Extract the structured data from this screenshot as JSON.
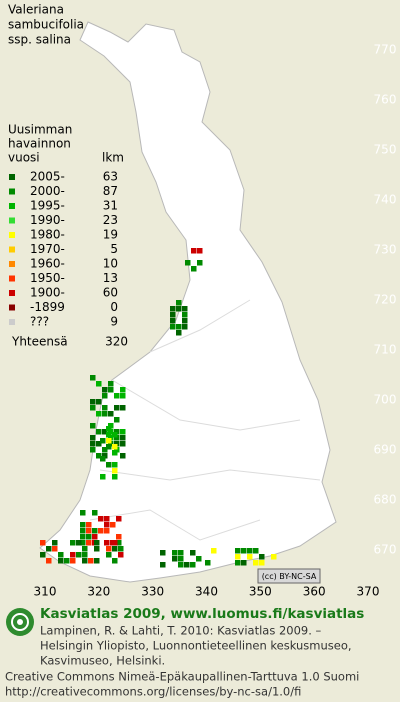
{
  "title": [
    "Valeriana",
    "sambucifolia",
    "ssp. salina"
  ],
  "legend": {
    "heading": [
      "Uusimman",
      "havainnon"
    ],
    "col_year": "vuosi",
    "col_count": "lkm",
    "rows": [
      {
        "label": "2005-",
        "count": 63,
        "color": "#006400"
      },
      {
        "label": "2000-",
        "count": 87,
        "color": "#008a00"
      },
      {
        "label": "1995-",
        "count": 31,
        "color": "#00b400"
      },
      {
        "label": "1990-",
        "count": 23,
        "color": "#33dd33"
      },
      {
        "label": "1980-",
        "count": 19,
        "color": "#ffff00"
      },
      {
        "label": "1970-",
        "count": 5,
        "color": "#ffcc00"
      },
      {
        "label": "1960-",
        "count": 10,
        "color": "#ff8800"
      },
      {
        "label": "1950-",
        "count": 13,
        "color": "#ff3300"
      },
      {
        "label": "1900-",
        "count": 60,
        "color": "#cc0000"
      },
      {
        "label": "-1899",
        "count": 0,
        "color": "#880000"
      },
      {
        "label": "???",
        "count": 9,
        "color": "#cccccc"
      }
    ],
    "total_label": "Yhteensä",
    "total": 320
  },
  "grid": {
    "yticks": [
      770,
      760,
      750,
      740,
      730,
      720,
      710,
      700,
      690,
      680,
      670
    ],
    "xticks": [
      310,
      320,
      330,
      340,
      350,
      360,
      370
    ]
  },
  "license_badge": "(cc) BY-NC-SA",
  "footer": {
    "site": "Kasviatlas 2009, www.luomus.fi/kasviatlas",
    "citation": [
      "Lampinen, R. & Lahti, T. 2010: Kasviatlas 2009. –",
      "Helsingin Yliopisto, Luonnontieteellinen keskusmuseo,",
      "Kasvimuseo, Helsinki."
    ],
    "license": [
      "Creative Commons Nimeä-Epäkaupallinen-Tarttuva 1.0 Suomi",
      "http://creativecommons.org/licenses/by-nc-sa/1.0/fi"
    ]
  }
}
